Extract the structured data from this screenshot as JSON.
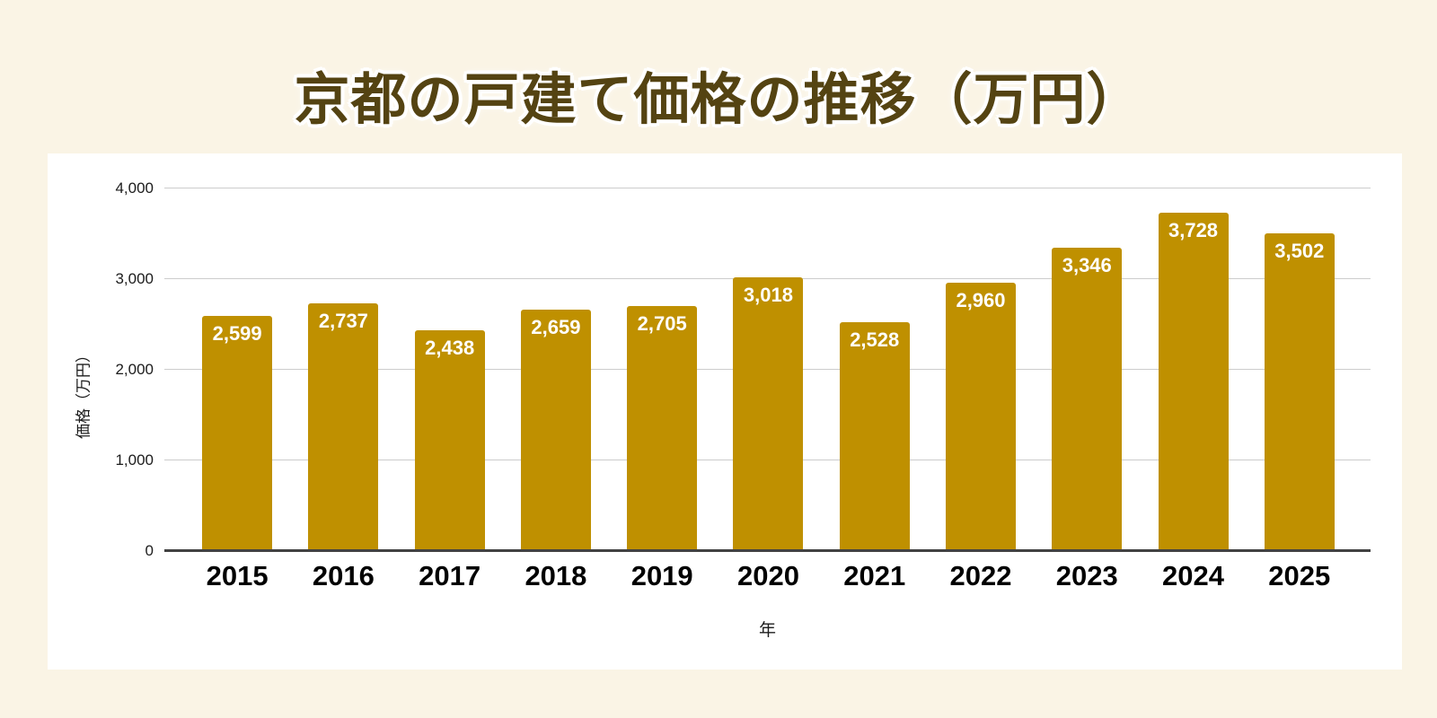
{
  "page": {
    "background_color": "#FAF4E5",
    "card_color": "#FFFFFF"
  },
  "title": {
    "text": "京都の戸建て価格の推移（万円）",
    "color": "#544312"
  },
  "chart_data": {
    "type": "bar",
    "title": "京都の戸建て価格の推移（万円）",
    "categories": [
      "2015",
      "2016",
      "2017",
      "2018",
      "2019",
      "2020",
      "2021",
      "2022",
      "2023",
      "2024",
      "2025"
    ],
    "values": [
      2599,
      2737,
      2438,
      2659,
      2705,
      3018,
      2528,
      2960,
      3346,
      3728,
      3502
    ],
    "value_labels": [
      "2,599",
      "2,737",
      "2,438",
      "2,659",
      "2,705",
      "3,018",
      "2,528",
      "2,960",
      "3,346",
      "3,728",
      "3,502"
    ],
    "xlabel": "年",
    "ylabel": "価格（万円）",
    "ylim": [
      0,
      4000
    ],
    "yticks": [
      0,
      1000,
      2000,
      3000,
      4000
    ],
    "ytick_labels": [
      "0",
      "1,000",
      "2,000",
      "3,000",
      "4,000"
    ],
    "grid": true,
    "legend": false,
    "bar_color": "#BF9000",
    "value_label_color": "#FFFFFF",
    "gridline_color": "#CCCCCC",
    "axis_line_color": "#424242"
  }
}
